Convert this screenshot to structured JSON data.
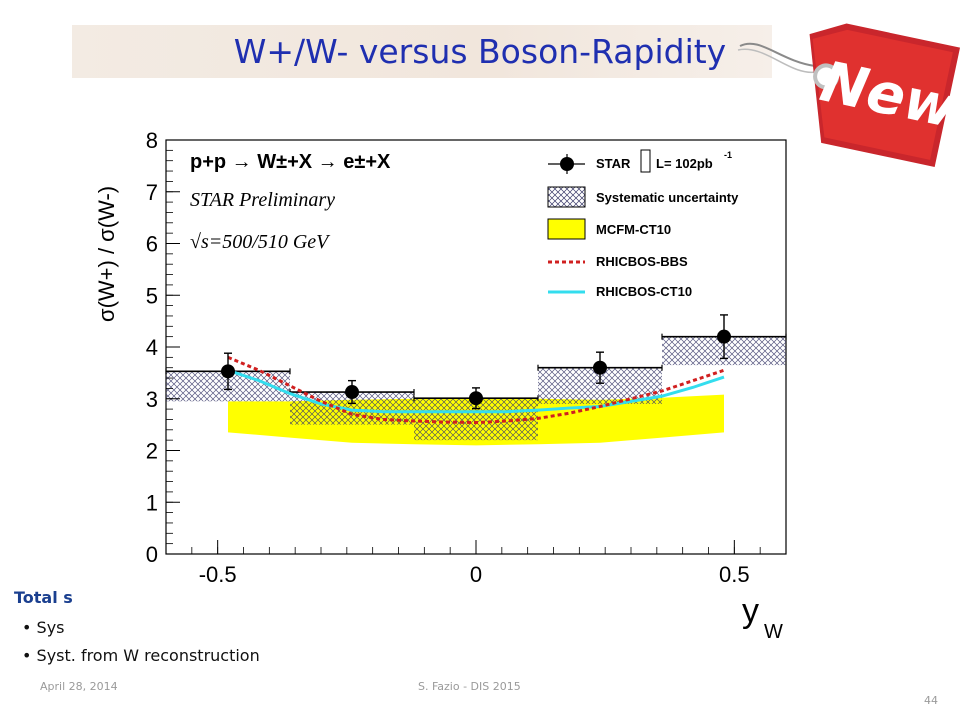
{
  "slide": {
    "title": "W+/W- versus Boson-Rapidity",
    "tag_text": "New",
    "total_label": "Total s",
    "bullet1": "Sys",
    "bullet2": "Syst. from W reconstruction",
    "footer_date": "April 28, 2014",
    "footer_author": "S. Fazio - DIS 2015",
    "page_number": "44"
  },
  "chart_data": {
    "type": "scatter",
    "xlabel": "y",
    "xlabel_sub": "W",
    "ylabel": "σ(W+) / σ(W-)",
    "xlim": [
      -0.6,
      0.6
    ],
    "ylim": [
      0,
      8
    ],
    "x_ticks": [
      -0.5,
      0,
      0.5
    ],
    "x_tick_labels": [
      "-0.5",
      "0",
      "0.5"
    ],
    "y_ticks": [
      0,
      1,
      2,
      3,
      4,
      5,
      6,
      7,
      8
    ],
    "y_tick_labels": [
      "0",
      "1",
      "2",
      "3",
      "4",
      "5",
      "6",
      "7",
      "8"
    ],
    "annotations": {
      "process": "p+p → W±+X → e±+X",
      "preliminary": "STAR Preliminary",
      "energy": "√s=500/510 GeV"
    },
    "legend": {
      "placement": "top-right",
      "entries": [
        "STAR",
        "L= 102pb",
        "-1",
        "Systematic uncertainty",
        "MCFM-CT10",
        "RHICBOS-BBS",
        "RHICBOS-CT10"
      ]
    },
    "star_points": [
      {
        "x": -0.48,
        "y": 3.53,
        "err": 0.35
      },
      {
        "x": -0.24,
        "y": 3.13,
        "err": 0.22
      },
      {
        "x": 0.0,
        "y": 3.01,
        "err": 0.2
      },
      {
        "x": 0.24,
        "y": 3.6,
        "err": 0.3
      },
      {
        "x": 0.48,
        "y": 4.2,
        "err": 0.42
      }
    ],
    "syst_boxes": [
      {
        "x0": -0.6,
        "x1": -0.36,
        "ylow": 2.95,
        "yhigh": 3.53
      },
      {
        "x0": -0.36,
        "x1": -0.12,
        "ylow": 2.5,
        "yhigh": 3.13
      },
      {
        "x0": -0.12,
        "x1": 0.12,
        "ylow": 2.2,
        "yhigh": 3.01
      },
      {
        "x0": 0.12,
        "x1": 0.36,
        "ylow": 2.9,
        "yhigh": 3.6
      },
      {
        "x0": 0.36,
        "x1": 0.6,
        "ylow": 3.65,
        "yhigh": 4.2
      }
    ],
    "mcfm_band": {
      "x": [
        -0.48,
        -0.36,
        -0.24,
        -0.12,
        0.0,
        0.12,
        0.24,
        0.36,
        0.48
      ],
      "ylow": [
        2.35,
        2.25,
        2.15,
        2.12,
        2.1,
        2.12,
        2.15,
        2.25,
        2.35
      ],
      "yhigh": [
        2.95,
        2.95,
        2.98,
        3.0,
        3.0,
        3.0,
        2.98,
        3.02,
        3.08
      ]
    },
    "rhicbos_bbs": {
      "x": [
        -0.48,
        -0.42,
        -0.36,
        -0.3,
        -0.24,
        -0.18,
        -0.12,
        -0.06,
        0.0,
        0.06,
        0.12,
        0.18,
        0.24,
        0.3,
        0.36,
        0.42,
        0.48
      ],
      "y": [
        3.8,
        3.55,
        3.25,
        2.95,
        2.7,
        2.6,
        2.57,
        2.55,
        2.54,
        2.57,
        2.62,
        2.72,
        2.85,
        3.0,
        3.15,
        3.35,
        3.55
      ]
    },
    "rhicbos_ct10": {
      "x": [
        -0.48,
        -0.42,
        -0.36,
        -0.3,
        -0.24,
        -0.18,
        -0.12,
        -0.06,
        0.0,
        0.06,
        0.12,
        0.18,
        0.24,
        0.3,
        0.36,
        0.42,
        0.48
      ],
      "y": [
        3.55,
        3.35,
        3.1,
        2.9,
        2.78,
        2.75,
        2.75,
        2.75,
        2.75,
        2.75,
        2.78,
        2.82,
        2.85,
        2.95,
        3.05,
        3.22,
        3.42
      ]
    }
  }
}
